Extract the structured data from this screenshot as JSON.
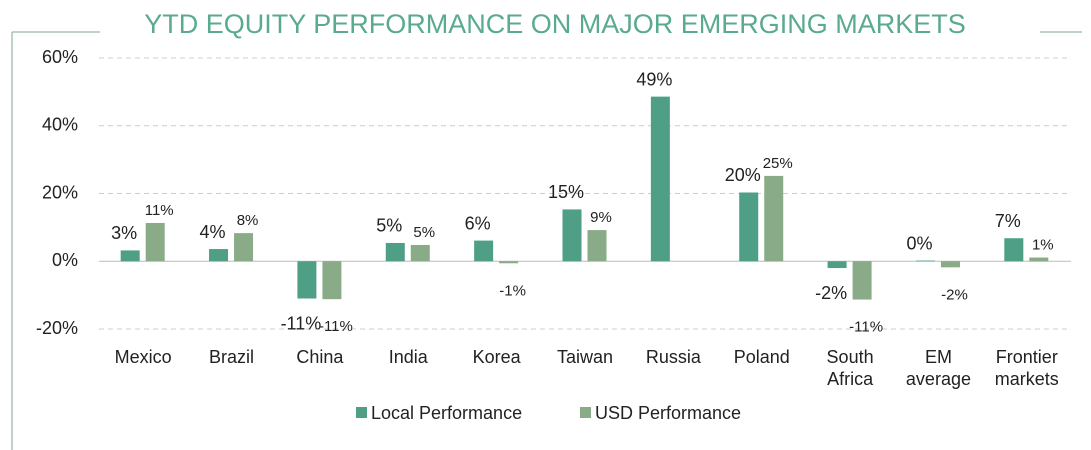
{
  "chart_data": {
    "type": "bar",
    "title": "YTD EQUITY PERFORMANCE ON MAJOR EMERGING MARKETS",
    "categories": [
      "Mexico",
      "Brazil",
      "China",
      "India",
      "Korea",
      "Taiwan",
      "Russia",
      "Poland",
      "South Africa",
      "EM average",
      "Frontier markets"
    ],
    "series": [
      {
        "name": "Local Performance",
        "color": "#4e9f86",
        "values": [
          3.2,
          3.6,
          -11,
          5.4,
          6.1,
          15.3,
          48.6,
          20.3,
          -2,
          0.2,
          6.8
        ],
        "value_labels": [
          "3%",
          "4%",
          "-11%",
          "5%",
          "6%",
          "15%",
          "49%",
          "20%",
          "-2%",
          "0%",
          "7%"
        ]
      },
      {
        "name": "USD Performance",
        "color": "#8aab88",
        "values": [
          11.3,
          8.3,
          -11.2,
          4.8,
          -0.6,
          9.2,
          null,
          25.2,
          -11.3,
          -1.8,
          1.1
        ],
        "value_labels": [
          "11%",
          "8%",
          "-11%",
          "5%",
          "-1%",
          "9%",
          null,
          "25%",
          "-11%",
          "-2%",
          "1%"
        ]
      }
    ],
    "ylim": [
      -20,
      60
    ],
    "yticks": [
      {
        "value": -20,
        "label": "-20%"
      },
      {
        "value": 0,
        "label": "0%"
      },
      {
        "value": 20,
        "label": "20%"
      },
      {
        "value": 40,
        "label": "40%"
      },
      {
        "value": 60,
        "label": "60%"
      }
    ],
    "grid": true,
    "legend": "bottom"
  }
}
